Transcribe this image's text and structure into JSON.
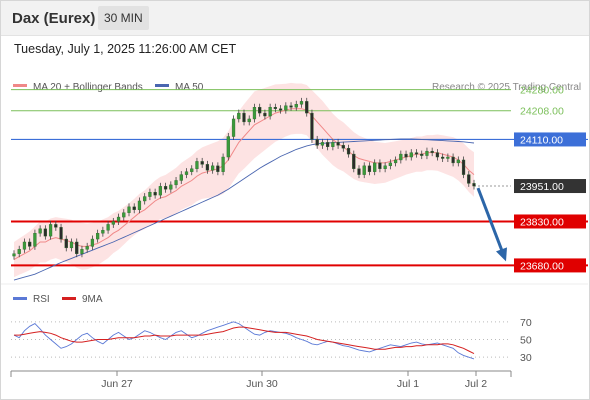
{
  "header": {
    "title": "Dax (Eurex)",
    "timeframe": "30 MIN",
    "datetime": "Tuesday, July 1, 2025 11:26:00 AM CET"
  },
  "colors": {
    "candle": "#3a9a3a",
    "ma20": "#f08888",
    "band_fill": "#fde0e0",
    "ma50": "#4a66b0",
    "resistance": "#7bbf5a",
    "pivot": "#3c6fd8",
    "support": "#e00000",
    "current": "#333333",
    "arrow": "#2c66a8",
    "rsi": "#5b79d6",
    "rsi_ma": "#d52020"
  },
  "chart_data": [
    {
      "type": "candlestick",
      "title": "",
      "xlabel": "",
      "ylabel": "",
      "ylim": [
        23620,
        24330
      ],
      "legend": [
        {
          "name": "MA 20 + Bollinger Bands",
          "color": "#f08888"
        },
        {
          "name": "MA 50",
          "color": "#4a66b0"
        }
      ],
      "legend_position": "top-left",
      "x_ticks": [
        "Jun 27",
        "Jun 30",
        "Jul 1",
        "Jul 2"
      ],
      "levels": [
        {
          "value": 24280.0,
          "label": "24280.00",
          "role": "resistance"
        },
        {
          "value": 24208.0,
          "label": "24208.00",
          "role": "resistance"
        },
        {
          "value": 24110.0,
          "label": "24110.00",
          "role": "pivot"
        },
        {
          "value": 23951.0,
          "label": "23951.00",
          "role": "current"
        },
        {
          "value": 23830.0,
          "label": "23830.00",
          "role": "support"
        },
        {
          "value": 23680.0,
          "label": "23680.00",
          "role": "support"
        }
      ],
      "forecast_arrow": {
        "from": 23951,
        "to": 23680
      },
      "close": [
        23720,
        23735,
        23760,
        23745,
        23790,
        23805,
        23780,
        23820,
        23810,
        23770,
        23740,
        23760,
        23720,
        23735,
        23745,
        23770,
        23790,
        23800,
        23820,
        23830,
        23845,
        23860,
        23880,
        23870,
        23900,
        23915,
        23930,
        23920,
        23950,
        23940,
        23955,
        23970,
        23990,
        24000,
        24010,
        24035,
        24025,
        24005,
        24020,
        24000,
        24050,
        24120,
        24180,
        24200,
        24170,
        24180,
        24220,
        24200,
        24190,
        24220,
        24215,
        24210,
        24225,
        24220,
        24230,
        24240,
        24200,
        24110,
        24090,
        24100,
        24085,
        24100,
        24090,
        24080,
        24060,
        24010,
        23990,
        24020,
        24000,
        24030,
        24010,
        24020,
        24030,
        24040,
        24060,
        24050,
        24065,
        24060,
        24055,
        24070,
        24065,
        24050,
        24045,
        24050,
        24030,
        24040,
        23990,
        23960,
        23951
      ],
      "ma20": [
        23700,
        23710,
        23720,
        23730,
        23745,
        23760,
        23760,
        23770,
        23775,
        23770,
        23765,
        23760,
        23750,
        23745,
        23745,
        23750,
        23755,
        23765,
        23775,
        23790,
        23800,
        23815,
        23830,
        23845,
        23860,
        23870,
        23885,
        23900,
        23910,
        23915,
        23925,
        23935,
        23950,
        23960,
        23970,
        23985,
        23995,
        24000,
        24005,
        24010,
        24020,
        24040,
        24070,
        24100,
        24120,
        24140,
        24160,
        24170,
        24180,
        24190,
        24200,
        24205,
        24210,
        24215,
        24215,
        24215,
        24210,
        24190,
        24170,
        24150,
        24130,
        24110,
        24095,
        24085,
        24070,
        24055,
        24045,
        24040,
        24035,
        24030,
        24030,
        24030,
        24035,
        24040,
        24045,
        24050,
        24055,
        24060,
        24060,
        24065,
        24065,
        24065,
        24060,
        24055,
        24050,
        24040,
        24025,
        24005,
        23990
      ],
      "ma50": [
        23630,
        23635,
        23640,
        23645,
        23650,
        23658,
        23666,
        23674,
        23682,
        23690,
        23697,
        23704,
        23711,
        23718,
        23725,
        23732,
        23739,
        23746,
        23753,
        23760,
        23768,
        23776,
        23784,
        23792,
        23800,
        23808,
        23816,
        23824,
        23832,
        23840,
        23848,
        23856,
        23864,
        23872,
        23880,
        23888,
        23896,
        23904,
        23912,
        23920,
        23930,
        23940,
        23952,
        23964,
        23976,
        23988,
        24000,
        24012,
        24022,
        24032,
        24042,
        24052,
        24060,
        24068,
        24076,
        24082,
        24088,
        24092,
        24095,
        24097,
        24098,
        24099,
        24100,
        24101,
        24102,
        24103,
        24104,
        24105,
        24106,
        24107,
        24108,
        24109,
        24110,
        24111,
        24112,
        24112,
        24112,
        24111,
        24110,
        24109,
        24108,
        24107,
        24106,
        24105,
        24104,
        24103,
        24102,
        24100,
        24098
      ],
      "band_width": [
        60,
        62,
        64,
        66,
        68,
        70,
        70,
        70,
        70,
        72,
        74,
        76,
        78,
        80,
        78,
        76,
        74,
        72,
        70,
        68,
        66,
        64,
        62,
        62,
        64,
        66,
        68,
        70,
        72,
        74,
        76,
        78,
        80,
        82,
        84,
        86,
        88,
        90,
        92,
        94,
        96,
        98,
        102,
        106,
        110,
        112,
        114,
        110,
        106,
        102,
        98,
        94,
        90,
        88,
        86,
        86,
        86,
        88,
        90,
        92,
        90,
        88,
        86,
        84,
        82,
        80,
        78,
        76,
        74,
        72,
        70,
        68,
        66,
        64,
        62,
        60,
        60,
        60,
        60,
        60,
        60,
        62,
        64,
        66,
        68,
        70,
        72,
        74,
        76
      ]
    },
    {
      "type": "line",
      "title": "",
      "legend": [
        {
          "name": "RSI",
          "color": "#5b79d6"
        },
        {
          "name": "9MA",
          "color": "#d52020"
        }
      ],
      "legend_position": "top-left",
      "ylim": [
        20,
        80
      ],
      "y_ticks": [
        70,
        50,
        30
      ],
      "rsi": [
        55,
        52,
        60,
        65,
        68,
        62,
        55,
        50,
        45,
        40,
        42,
        45,
        50,
        55,
        57,
        52,
        48,
        45,
        50,
        55,
        58,
        54,
        50,
        52,
        56,
        60,
        58,
        55,
        52,
        50,
        54,
        58,
        60,
        56,
        52,
        54,
        57,
        60,
        62,
        64,
        66,
        68,
        70,
        68,
        64,
        60,
        56,
        55,
        58,
        60,
        59,
        58,
        57,
        55,
        52,
        50,
        48,
        45,
        44,
        46,
        48,
        47,
        45,
        43,
        42,
        40,
        38,
        37,
        36,
        38,
        40,
        42,
        44,
        43,
        42,
        44,
        46,
        47,
        45,
        44,
        45,
        46,
        44,
        42,
        40,
        35,
        32,
        30,
        28
      ],
      "rsi_ma": [
        55,
        55,
        56,
        57,
        58,
        59,
        58,
        57,
        55,
        52,
        50,
        48,
        47,
        47,
        48,
        49,
        50,
        50,
        50,
        51,
        52,
        52,
        52,
        52,
        53,
        54,
        54,
        55,
        54,
        54,
        54,
        55,
        55,
        55,
        55,
        55,
        55,
        56,
        57,
        58,
        59,
        61,
        63,
        64,
        64,
        63,
        62,
        61,
        60,
        59,
        58,
        58,
        58,
        57,
        56,
        55,
        54,
        52,
        50,
        49,
        48,
        47,
        46,
        45,
        44,
        43,
        42,
        41,
        40,
        39,
        39,
        39,
        40,
        41,
        41,
        42,
        42,
        43,
        43,
        44,
        44,
        44,
        45,
        45,
        44,
        42,
        40,
        37,
        34
      ]
    }
  ]
}
